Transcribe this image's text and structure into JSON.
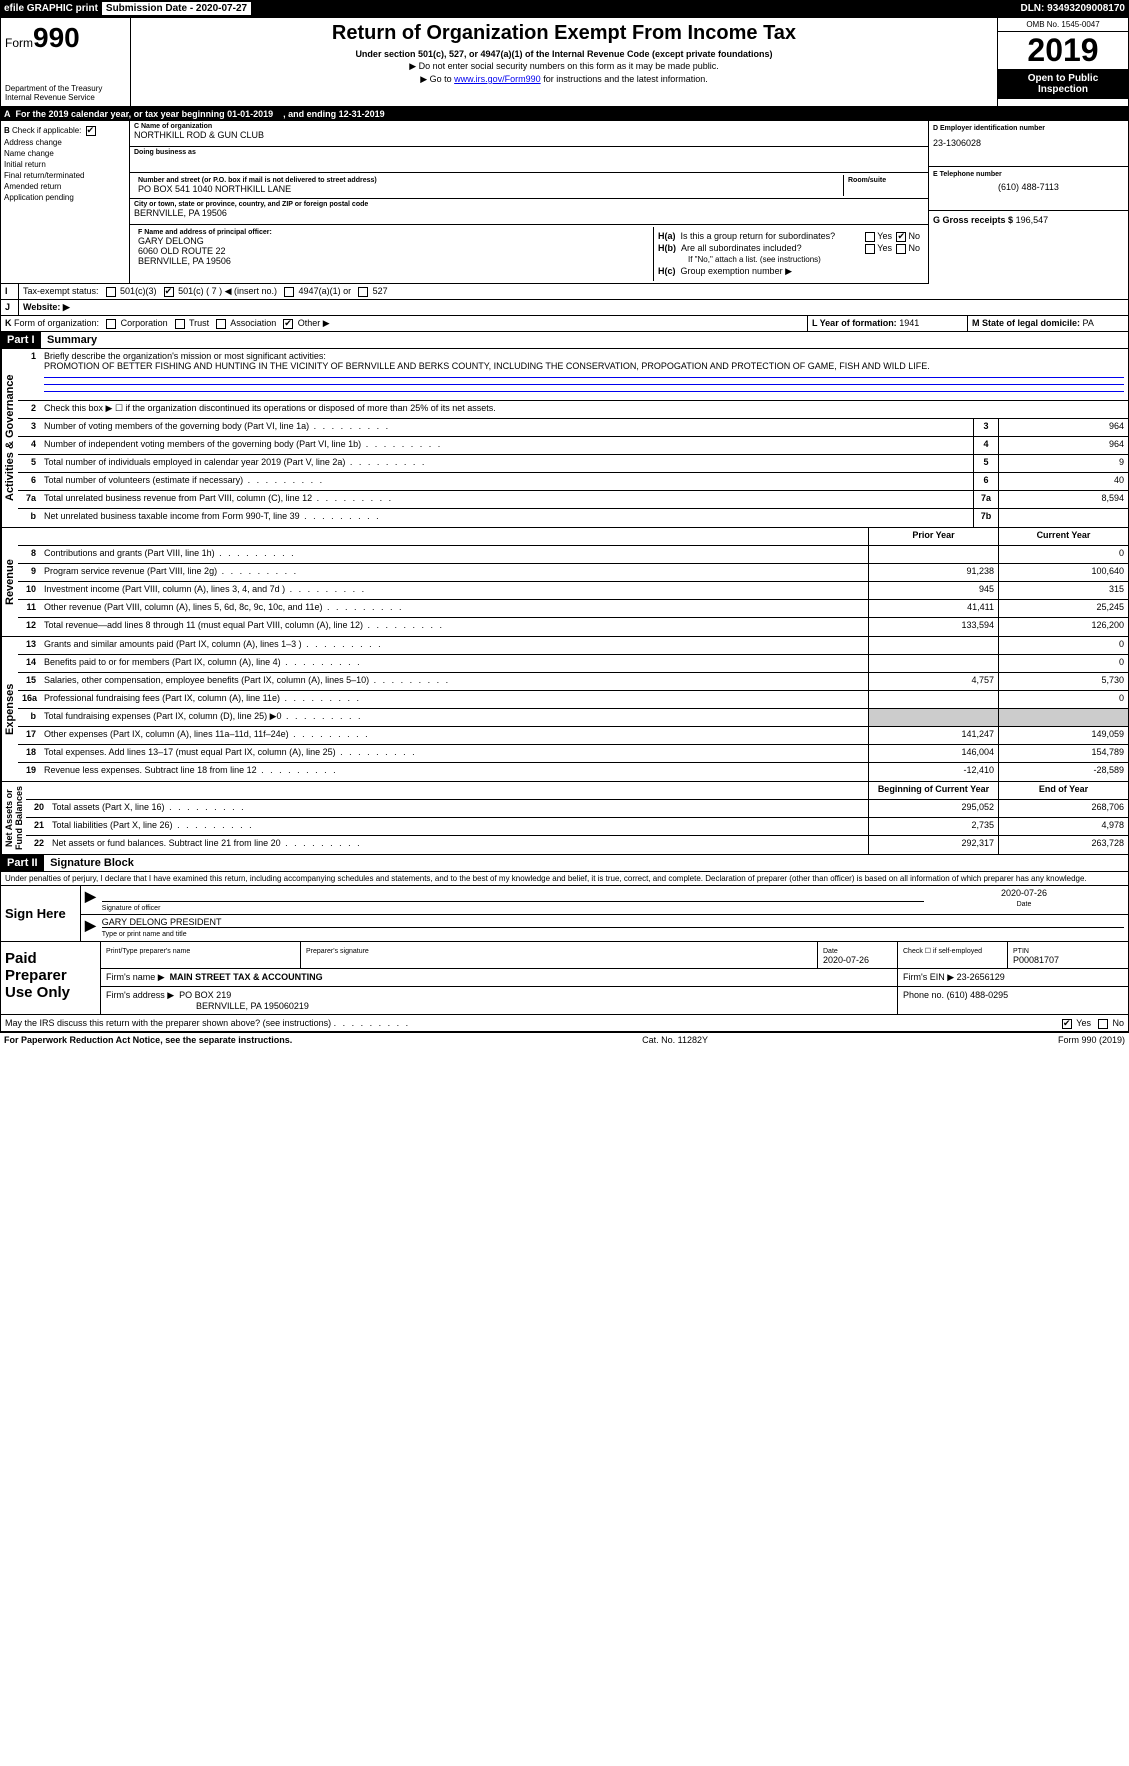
{
  "topbar": {
    "efile": "efile GRAPHIC print",
    "submission": "Submission Date - 2020-07-27",
    "dln": "DLN: 93493209008170"
  },
  "header": {
    "form": "990",
    "formPrefix": "Form",
    "title": "Return of Organization Exempt From Income Tax",
    "sub1": "Under section 501(c), 527, or 4947(a)(1) of the Internal Revenue Code (except private foundations)",
    "sub2": "▶ Do not enter social security numbers on this form as it may be made public.",
    "sub3_pre": "▶ Go to ",
    "sub3_link": "www.irs.gov/Form990",
    "sub3_post": " for instructions and the latest information.",
    "dept": "Department of the Treasury\nInternal Revenue Service",
    "omb": "OMB No. 1545-0047",
    "year": "2019",
    "otp": "Open to Public Inspection"
  },
  "A": {
    "text": "For the 2019 calendar year, or tax year beginning 01-01-2019",
    "ending": ", and ending 12-31-2019"
  },
  "B": {
    "label": "Check if applicable:",
    "opts": [
      "Address change",
      "Name change",
      "Initial return",
      "Final return/terminated",
      "Amended return",
      "Application pending"
    ]
  },
  "C": {
    "nameLbl": "C Name of organization",
    "name": "NORTHKILL ROD & GUN CLUB",
    "dbaLbl": "Doing business as",
    "dba": "",
    "streetLbl": "Number and street (or P.O. box if mail is not delivered to street address)",
    "street": "PO BOX 541 1040 NORTHKILL LANE",
    "roomLbl": "Room/suite",
    "cityLbl": "City or town, state or province, country, and ZIP or foreign postal code",
    "city": "BERNVILLE, PA  19506"
  },
  "D": {
    "lbl": "D Employer identification number",
    "val": "23-1306028"
  },
  "E": {
    "lbl": "E Telephone number",
    "val": "(610) 488-7113"
  },
  "G": {
    "lbl": "G Gross receipts $",
    "val": "196,547"
  },
  "F": {
    "lbl": "F  Name and address of principal officer:",
    "name": "GARY DELONG",
    "addr1": "6060 OLD ROUTE 22",
    "addr2": "BERNVILLE, PA  19506"
  },
  "H": {
    "a": "Is this a group return for subordinates?",
    "aNo": true,
    "b": "Are all subordinates included?",
    "bNote": "If \"No,\" attach a list. (see instructions)",
    "c": "Group exemption number ▶"
  },
  "I": {
    "lbl": "Tax-exempt status:",
    "c7": "501(c) ( 7 ) ◀ (insert no.)"
  },
  "J": {
    "lbl": "Website: ▶"
  },
  "K": {
    "lbl": "Form of organization:",
    "opts": [
      "Corporation",
      "Trust",
      "Association",
      "Other ▶"
    ],
    "checked": 3
  },
  "L": {
    "lbl": "L Year of formation:",
    "val": "1941"
  },
  "M": {
    "lbl": "M State of legal domicile:",
    "val": "PA"
  },
  "part1": {
    "hdr": "Part I",
    "title": "Summary"
  },
  "summary": {
    "q1": "Briefly describe the organization's mission or most significant activities:",
    "mission": "PROMOTION OF BETTER FISHING AND HUNTING IN THE VICINITY OF BERNVILLE AND BERKS COUNTY, INCLUDING THE CONSERVATION, PROPOGATION AND PROTECTION OF GAME, FISH AND WILD LIFE.",
    "q2": "Check this box ▶ ☐ if the organization discontinued its operations or disposed of more than 25% of its net assets.",
    "lines": [
      {
        "n": "3",
        "t": "Number of voting members of the governing body (Part VI, line 1a)",
        "box": "3",
        "v": "964"
      },
      {
        "n": "4",
        "t": "Number of independent voting members of the governing body (Part VI, line 1b)",
        "box": "4",
        "v": "964"
      },
      {
        "n": "5",
        "t": "Total number of individuals employed in calendar year 2019 (Part V, line 2a)",
        "box": "5",
        "v": "9"
      },
      {
        "n": "6",
        "t": "Total number of volunteers (estimate if necessary)",
        "box": "6",
        "v": "40"
      },
      {
        "n": "7a",
        "t": "Total unrelated business revenue from Part VIII, column (C), line 12",
        "box": "7a",
        "v": "8,594"
      },
      {
        "n": "b",
        "t": "Net unrelated business taxable income from Form 990-T, line 39",
        "box": "7b",
        "v": ""
      }
    ],
    "colHdr": {
      "prior": "Prior Year",
      "current": "Current Year"
    },
    "revenue": [
      {
        "n": "8",
        "t": "Contributions and grants (Part VIII, line 1h)",
        "p": "",
        "c": "0"
      },
      {
        "n": "9",
        "t": "Program service revenue (Part VIII, line 2g)",
        "p": "91,238",
        "c": "100,640"
      },
      {
        "n": "10",
        "t": "Investment income (Part VIII, column (A), lines 3, 4, and 7d )",
        "p": "945",
        "c": "315"
      },
      {
        "n": "11",
        "t": "Other revenue (Part VIII, column (A), lines 5, 6d, 8c, 9c, 10c, and 11e)",
        "p": "41,411",
        "c": "25,245"
      },
      {
        "n": "12",
        "t": "Total revenue—add lines 8 through 11 (must equal Part VIII, column (A), line 12)",
        "p": "133,594",
        "c": "126,200"
      }
    ],
    "expenses": [
      {
        "n": "13",
        "t": "Grants and similar amounts paid (Part IX, column (A), lines 1–3 )",
        "p": "",
        "c": "0"
      },
      {
        "n": "14",
        "t": "Benefits paid to or for members (Part IX, column (A), line 4)",
        "p": "",
        "c": "0"
      },
      {
        "n": "15",
        "t": "Salaries, other compensation, employee benefits (Part IX, column (A), lines 5–10)",
        "p": "4,757",
        "c": "5,730"
      },
      {
        "n": "16a",
        "t": "Professional fundraising fees (Part IX, column (A), line 11e)",
        "p": "",
        "c": "0"
      },
      {
        "n": "b",
        "t": "Total fundraising expenses (Part IX, column (D), line 25) ▶0",
        "p": "shade",
        "c": "shade"
      },
      {
        "n": "17",
        "t": "Other expenses (Part IX, column (A), lines 11a–11d, 11f–24e)",
        "p": "141,247",
        "c": "149,059"
      },
      {
        "n": "18",
        "t": "Total expenses. Add lines 13–17 (must equal Part IX, column (A), line 25)",
        "p": "146,004",
        "c": "154,789"
      },
      {
        "n": "19",
        "t": "Revenue less expenses. Subtract line 18 from line 12",
        "p": "-12,410",
        "c": "-28,589"
      }
    ],
    "netHdr": {
      "begin": "Beginning of Current Year",
      "end": "End of Year"
    },
    "net": [
      {
        "n": "20",
        "t": "Total assets (Part X, line 16)",
        "p": "295,052",
        "c": "268,706"
      },
      {
        "n": "21",
        "t": "Total liabilities (Part X, line 26)",
        "p": "2,735",
        "c": "4,978"
      },
      {
        "n": "22",
        "t": "Net assets or fund balances. Subtract line 21 from line 20",
        "p": "292,317",
        "c": "263,728"
      }
    ],
    "sideLabels": {
      "act": "Activities & Governance",
      "rev": "Revenue",
      "exp": "Expenses",
      "net": "Net Assets or\nFund Balances"
    }
  },
  "part2": {
    "hdr": "Part II",
    "title": "Signature Block",
    "decl": "Under penalties of perjury, I declare that I have examined this return, including accompanying schedules and statements, and to the best of my knowledge and belief, it is true, correct, and complete. Declaration of preparer (other than officer) is based on all information of which preparer has any knowledge."
  },
  "sign": {
    "here": "Sign Here",
    "sigLbl": "Signature of officer",
    "date": "2020-07-26",
    "name": "GARY DELONG  PRESIDENT",
    "nameLbl": "Type or print name and title"
  },
  "paid": {
    "title": "Paid Preparer Use Only",
    "r1": {
      "a": "Print/Type preparer's name",
      "b": "Preparer's signature",
      "c": "Date",
      "cval": "2020-07-26",
      "d": "Check ☐ if self-employed",
      "e": "PTIN",
      "eval": "P00081707"
    },
    "r2": {
      "a": "Firm's name    ▶",
      "aval": "MAIN STREET TAX & ACCOUNTING",
      "b": "Firm's EIN ▶",
      "bval": "23-2656129"
    },
    "r3": {
      "a": "Firm's address ▶",
      "aval": "PO BOX 219",
      "a2": "BERNVILLE, PA  195060219",
      "b": "Phone no.",
      "bval": "(610) 488-0295"
    }
  },
  "discuss": "May the IRS discuss this return with the preparer shown above? (see instructions)",
  "discussYes": true,
  "footer": {
    "l": "For Paperwork Reduction Act Notice, see the separate instructions.",
    "m": "Cat. No. 11282Y",
    "r": "Form 990 (2019)"
  }
}
